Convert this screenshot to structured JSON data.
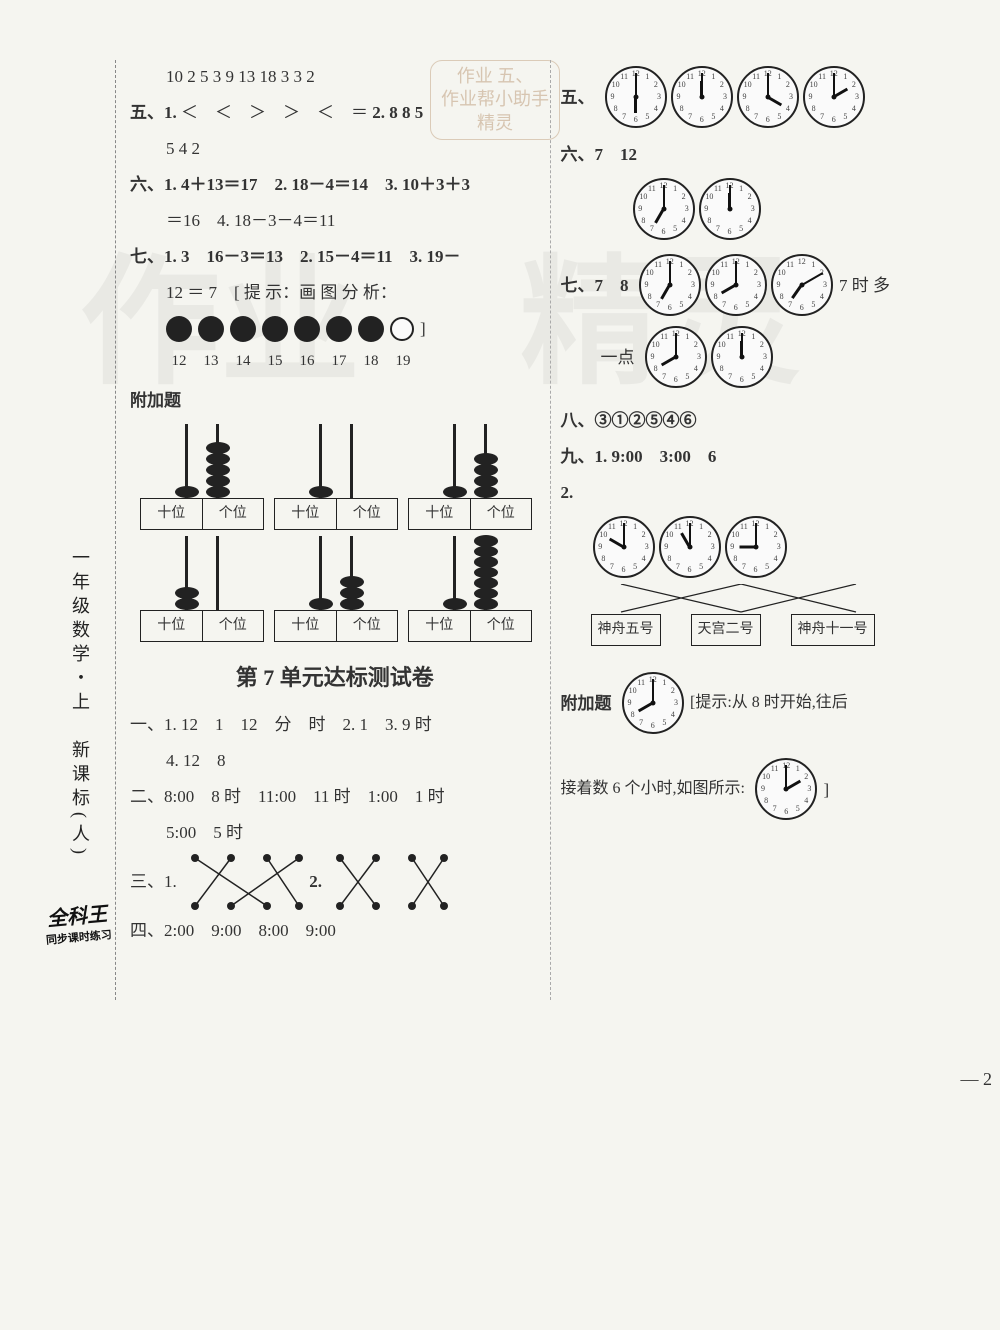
{
  "spine": {
    "vertical": "一年级数学・上　新课标(人)",
    "logo_top": "全科王",
    "logo_sub": "同步课时练习"
  },
  "watermarks": {
    "w1": "作业",
    "w2": "精灵"
  },
  "stamp": {
    "line1": "作业 五、",
    "line2": "作业帮小助手",
    "line3": "精灵"
  },
  "left": {
    "line1": "10  2 5  3  9  13  18  3  3  2",
    "line2a": "五、1.",
    "line2b": "＜　＜　＞　＞　＜　＝",
    "line2c": "2. 8  8  5",
    "line3": "5  4  2",
    "line4": "六、1. 4＋13＝17　2. 18－4＝14　3. 10＋3＋3",
    "line5": "＝16　4. 18－3－4＝11",
    "line6": "七、1. 3　16－3＝13　2. 15－4＝11　3. 19－",
    "line7": "12 ＝ 7　[ 提 示：画 图 分 析：",
    "dotlabels": [
      "12",
      "13",
      "14",
      "15",
      "16",
      "17",
      "18",
      "19"
    ],
    "bonus_label": "附加题",
    "abacus_r1": [
      {
        "tens": 1,
        "ones": 5
      },
      {
        "tens": 1,
        "ones": 0
      },
      {
        "tens": 1,
        "ones": 4
      }
    ],
    "abacus_r2": [
      {
        "tens": 2,
        "ones": 0
      },
      {
        "tens": 1,
        "ones": 3
      },
      {
        "tens": 1,
        "ones": 7
      }
    ],
    "abacus_cols": {
      "tens": "十位",
      "ones": "个位"
    },
    "title": "第 7 单元达标测试卷",
    "u7_l1": "一、1. 12　1　12　分　时　2. 1　3. 9 时",
    "u7_l2": "4. 12　8",
    "u7_l3": "二、8:00　8 时　11:00　11 时　1:00　1 时",
    "u7_l4": "5:00　5 时",
    "u7_l5a": "三、1.",
    "u7_l5b": "2.",
    "u7_l6": "四、2:00　9:00　8:00　9:00"
  },
  "right": {
    "q5": "五、",
    "q5_clocks": [
      {
        "h": 6,
        "m": 0
      },
      {
        "h": 12,
        "m": 0
      },
      {
        "h": 4,
        "m": 0
      },
      {
        "h": 2,
        "m": 0
      }
    ],
    "q6": "六、7　12",
    "q6_clocks": [
      {
        "h": 7,
        "m": 0
      },
      {
        "h": 12,
        "m": 0
      }
    ],
    "q7a": "七、7　8",
    "q7b": "7 时 多",
    "q7_clocks": [
      {
        "h": 7,
        "m": 0
      },
      {
        "h": 8,
        "m": 0
      },
      {
        "h": 7,
        "m": 10
      }
    ],
    "q7c": "一点",
    "q7c_clocks": [
      {
        "h": 8,
        "m": 0
      },
      {
        "h": 12,
        "m": 0
      }
    ],
    "q8": "八、③①②⑤④⑥",
    "q9": "九、1. 9:00　3:00　6",
    "q9_2": "2.",
    "q9_clocks": [
      {
        "h": 10,
        "m": 0
      },
      {
        "h": 11,
        "m": 0
      },
      {
        "h": 9,
        "m": 0
      }
    ],
    "q9_labels": [
      "神舟五号",
      "天宫二号",
      "神舟十一号"
    ],
    "bonus": "附加题",
    "bonus_hint": "[提示:从 8 时开始,往后",
    "bonus_clock": {
      "h": 8,
      "m": 0
    },
    "bonus2": "接着数 6 个小时,如图所示:",
    "bonus2_clock": {
      "h": 2,
      "m": 0
    },
    "bonus2_end": "]"
  },
  "page_num": "— 2",
  "colors": {
    "text": "#333333",
    "bg": "#f5f5f0",
    "clock_border": "#222222"
  }
}
